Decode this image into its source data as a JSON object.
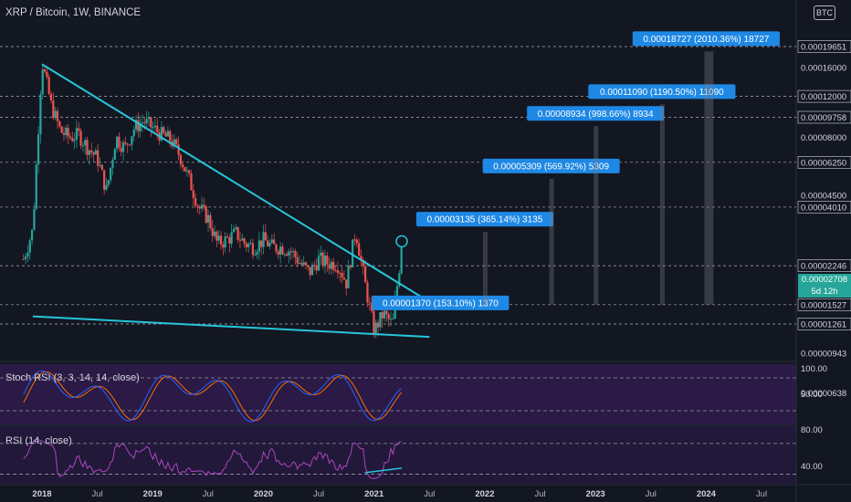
{
  "header": {
    "title": "XRP / Bitcoin, 1W, BINANCE",
    "currency": "BTC"
  },
  "price_tag": {
    "price": "0.00002708",
    "countdown": "5d 12h"
  },
  "colors": {
    "background": "#131722",
    "up": "#26a69a",
    "down": "#ef5350",
    "trendline": "#26c6da",
    "label_bg": "#1e88e5",
    "indicator_bg": "#2a1a45",
    "stoch_k": "#2962ff",
    "stoch_d": "#ff6d00",
    "rsi_line": "#ab47bc"
  },
  "chart_data": {
    "type": "candlestick",
    "title": "XRP / Bitcoin, 1W, BINANCE",
    "y_scale": "log",
    "x_range": [
      "2017-11",
      "2024-11"
    ],
    "x_ticks": [
      "2018",
      "Jul",
      "2019",
      "Jul",
      "2020",
      "Jul",
      "2021",
      "Jul",
      "2022",
      "Jul",
      "2023",
      "Jul",
      "2024",
      "Jul"
    ],
    "y_tick_labels": [
      "0.00019651",
      "0.00016000",
      "0.00012000",
      "0.00009758",
      "0.00008000",
      "0.00006250",
      "0.00004500",
      "0.00004010",
      "0.00002246",
      "0.00001527",
      "0.00001261",
      "0.00000943",
      "0.00000638"
    ],
    "horizontal_levels": [
      0.00019651,
      0.00012,
      9.758e-05,
      6.25e-05,
      4.01e-05,
      2.246e-05,
      1.527e-05,
      1.261e-05
    ],
    "trendlines": [
      {
        "name": "upper",
        "from": [
          "2018-01",
          0.000165
        ],
        "to": [
          "2021-07",
          1.57e-05
        ]
      },
      {
        "name": "lower",
        "from": [
          "2017-12",
          1.36e-05
        ],
        "to": [
          "2021-07",
          1.11e-05
        ]
      }
    ],
    "targets": [
      {
        "label": "0.00001370 (153.10%) 1370",
        "value": 1.37e-05
      },
      {
        "label": "0.00003135 (365.14%) 3135",
        "value": 3.135e-05
      },
      {
        "label": "0.00005309 (569.92%) 5309",
        "value": 5.309e-05
      },
      {
        "label": "0.00008934 (998.66%) 8934",
        "value": 8.934e-05
      },
      {
        "label": "0.00011090 (1190.50%) 11090",
        "value": 0.0001109
      },
      {
        "label": "0.00018727 (2010.36%) 18727",
        "value": 0.00018727
      }
    ],
    "last_price": 2.708e-05,
    "price_path": [
      [
        "2017-11",
        2.4e-05
      ],
      [
        "2017-12",
        3.2e-05
      ],
      [
        "2018-01",
        0.00017
      ],
      [
        "2018-02",
        0.00011
      ],
      [
        "2018-03",
        8.5e-05
      ],
      [
        "2018-04",
        8e-05
      ],
      [
        "2018-05",
        8.2e-05
      ],
      [
        "2018-06",
        7.2e-05
      ],
      [
        "2018-07",
        6.5e-05
      ],
      [
        "2018-08",
        4.7e-05
      ],
      [
        "2018-09",
        8e-05
      ],
      [
        "2018-10",
        7.2e-05
      ],
      [
        "2018-11",
        8.8e-05
      ],
      [
        "2018-12",
        9.4e-05
      ],
      [
        "2019-01",
        8.8e-05
      ],
      [
        "2019-02",
        8.2e-05
      ],
      [
        "2019-03",
        7.8e-05
      ],
      [
        "2019-04",
        6.6e-05
      ],
      [
        "2019-05",
        5.2e-05
      ],
      [
        "2019-06",
        4e-05
      ],
      [
        "2019-07",
        3.6e-05
      ],
      [
        "2019-08",
        2.8e-05
      ],
      [
        "2019-09",
        2.9e-05
      ],
      [
        "2019-10",
        3.1e-05
      ],
      [
        "2019-11",
        2.8e-05
      ],
      [
        "2019-12",
        2.7e-05
      ],
      [
        "2020-01",
        2.9e-05
      ],
      [
        "2020-02",
        2.7e-05
      ],
      [
        "2020-03",
        2.7e-05
      ],
      [
        "2020-04",
        2.6e-05
      ],
      [
        "2020-05",
        2.3e-05
      ],
      [
        "2020-06",
        2.1e-05
      ],
      [
        "2020-07",
        2.4e-05
      ],
      [
        "2020-08",
        2.3e-05
      ],
      [
        "2020-09",
        2.3e-05
      ],
      [
        "2020-10",
        1.9e-05
      ],
      [
        "2020-11",
        3.2e-05
      ],
      [
        "2020-12",
        1.9e-05
      ],
      [
        "2021-01",
        1.18e-05
      ],
      [
        "2021-02",
        1.4e-05
      ],
      [
        "2021-03",
        1.25e-05
      ],
      [
        "2021-04",
        2.71e-05
      ]
    ],
    "indicators": [
      {
        "name": "Stoch RSI (3, 3, 14, 14, close)",
        "levels": [
          80,
          20
        ],
        "y_ticks": [
          "100.00",
          "50.00"
        ]
      },
      {
        "name": "RSI (14, close)",
        "levels": [
          70,
          30
        ],
        "y_ticks": [
          "80.00",
          "40.00"
        ]
      }
    ]
  }
}
